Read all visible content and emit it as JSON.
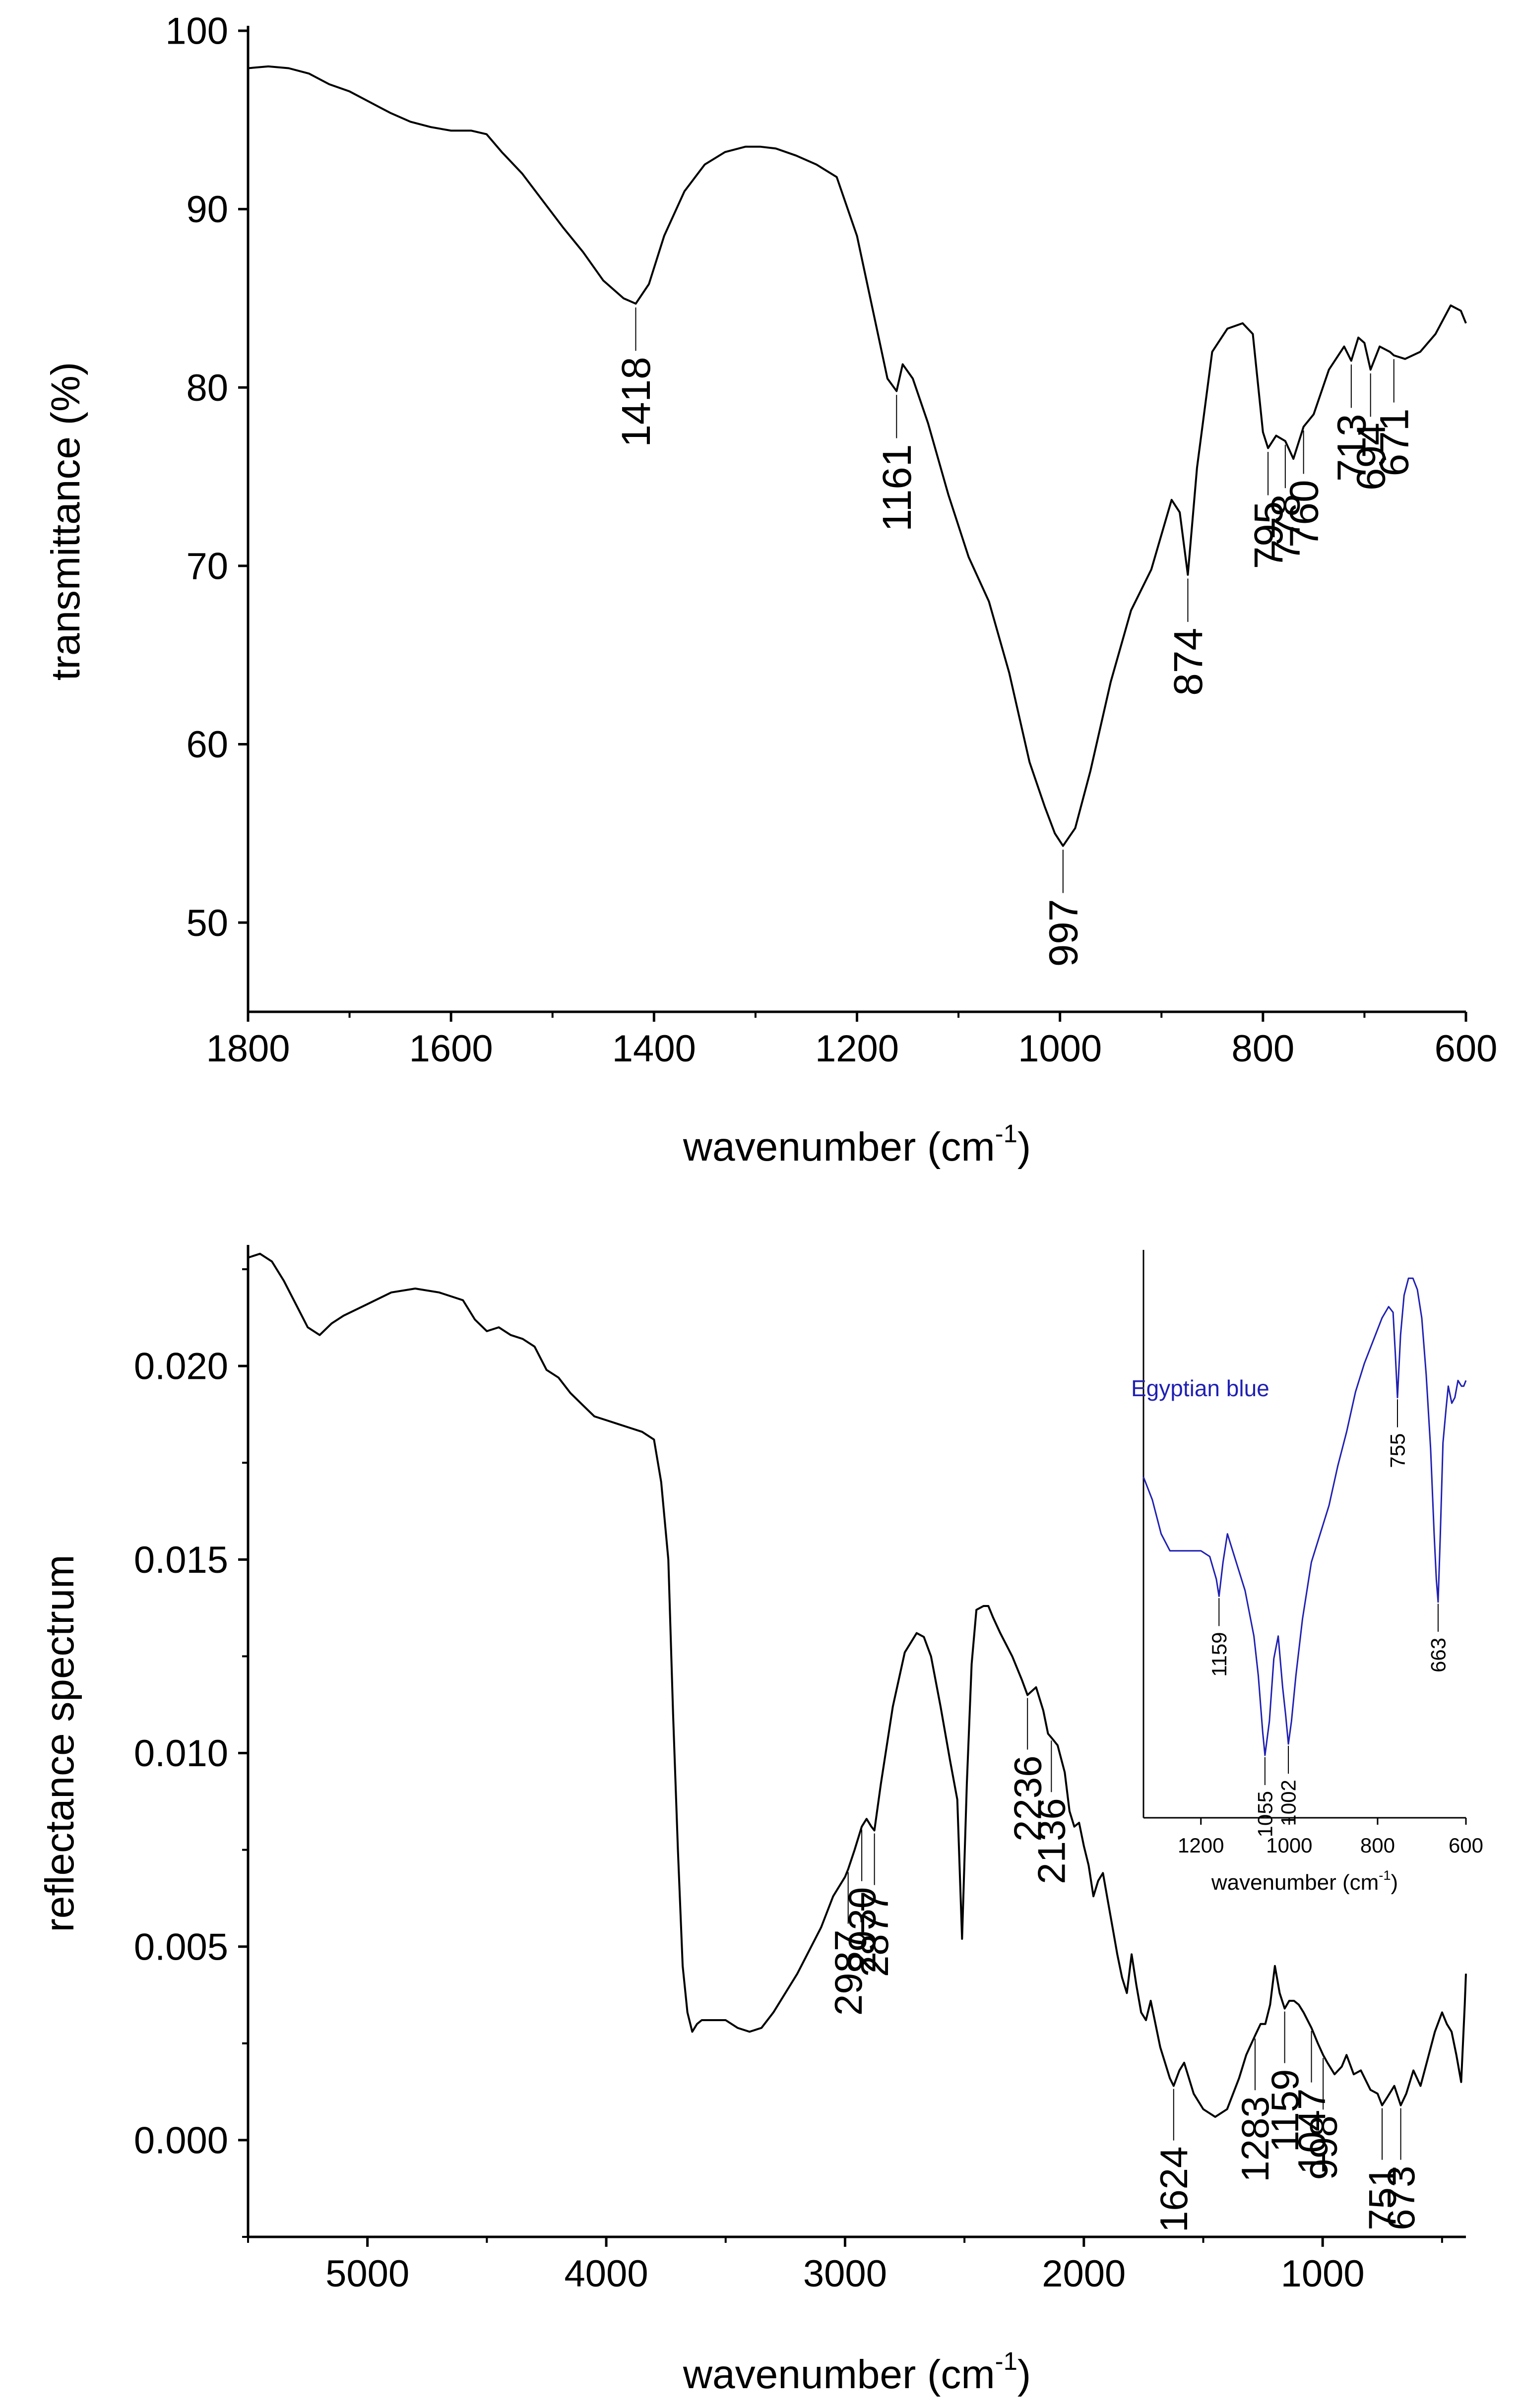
{
  "chart_data": [
    {
      "id": "top",
      "type": "line",
      "xlabel": "wavenumber (cm",
      "xlabel_sup": "-1",
      "xlabel_end": ")",
      "ylabel": "transmittance (%)",
      "xlim": [
        1800,
        600
      ],
      "ylim": [
        45,
        100
      ],
      "xticks": [
        1800,
        1600,
        1400,
        1200,
        1000,
        800,
        600
      ],
      "yticks": [
        50,
        60,
        70,
        80,
        90,
        100
      ],
      "series": [
        {
          "name": "transmittance",
          "color": "#000000",
          "x": [
            1800,
            1780,
            1760,
            1740,
            1720,
            1700,
            1680,
            1660,
            1640,
            1620,
            1600,
            1580,
            1565,
            1550,
            1530,
            1510,
            1490,
            1470,
            1450,
            1430,
            1418,
            1405,
            1390,
            1370,
            1350,
            1330,
            1310,
            1295,
            1280,
            1260,
            1240,
            1220,
            1200,
            1185,
            1170,
            1161,
            1155,
            1145,
            1130,
            1110,
            1090,
            1070,
            1050,
            1030,
            1015,
            1005,
            997,
            985,
            970,
            950,
            930,
            910,
            890,
            882,
            874,
            865,
            850,
            835,
            820,
            810,
            800,
            795,
            787,
            778,
            770,
            760,
            750,
            735,
            720,
            713,
            706,
            700,
            694,
            685,
            675,
            671,
            660,
            645,
            630,
            615,
            605,
            600
          ],
          "y": [
            97.9,
            98.0,
            97.9,
            97.6,
            97.0,
            96.6,
            96.0,
            95.4,
            94.9,
            94.6,
            94.4,
            94.4,
            94.2,
            93.2,
            92.0,
            90.5,
            89.0,
            87.6,
            86.0,
            85.0,
            84.7,
            85.8,
            88.5,
            91.0,
            92.5,
            93.2,
            93.5,
            93.5,
            93.4,
            93.0,
            92.5,
            91.8,
            88.5,
            84.5,
            80.5,
            79.8,
            81.3,
            80.5,
            78.0,
            74.0,
            70.5,
            68.0,
            64.0,
            59.0,
            56.5,
            55.0,
            54.3,
            55.3,
            58.5,
            63.5,
            67.5,
            69.8,
            73.7,
            73.0,
            69.5,
            75.5,
            82.0,
            83.3,
            83.6,
            83.0,
            77.5,
            76.6,
            77.3,
            77.0,
            76.0,
            77.8,
            78.5,
            81.0,
            82.3,
            81.5,
            82.8,
            82.5,
            81.0,
            82.3,
            82.0,
            81.8,
            81.6,
            82.0,
            83.0,
            84.6,
            84.3,
            83.6
          ]
        }
      ],
      "annotations": [
        {
          "label": "1418",
          "x": 1418
        },
        {
          "label": "1161",
          "x": 1161
        },
        {
          "label": "997",
          "x": 997
        },
        {
          "label": "874",
          "x": 874
        },
        {
          "label": "795",
          "x": 795
        },
        {
          "label": "778",
          "x": 778
        },
        {
          "label": "760",
          "x": 760
        },
        {
          "label": "713",
          "x": 713
        },
        {
          "label": "694",
          "x": 694
        },
        {
          "label": "671",
          "x": 671
        }
      ]
    },
    {
      "id": "bottom",
      "type": "line",
      "xlabel": "wavenumber (cm",
      "xlabel_sup": "-1",
      "xlabel_end": ")",
      "ylabel": "reflectance spectrum",
      "xlim": [
        5500,
        400
      ],
      "ylim": [
        -0.0025,
        0.023
      ],
      "xticks": [
        5000,
        4000,
        3000,
        2000,
        1000
      ],
      "yticks": [
        0.0,
        0.005,
        0.01,
        0.015,
        0.02
      ],
      "ytick_labels": [
        "0.000",
        "0.005",
        "0.010",
        "0.015",
        "0.020"
      ],
      "series": [
        {
          "name": "reflectance",
          "color": "#000000",
          "x": [
            5500,
            5450,
            5400,
            5350,
            5300,
            5250,
            5200,
            5150,
            5100,
            5000,
            4900,
            4800,
            4700,
            4600,
            4550,
            4500,
            4450,
            4400,
            4350,
            4300,
            4250,
            4200,
            4150,
            4100,
            4050,
            4000,
            3950,
            3900,
            3850,
            3800,
            3770,
            3740,
            3720,
            3700,
            3680,
            3660,
            3640,
            3620,
            3600,
            3560,
            3500,
            3450,
            3400,
            3350,
            3300,
            3200,
            3100,
            3050,
            3000,
            2987,
            2960,
            2930,
            2910,
            2890,
            2877,
            2850,
            2800,
            2750,
            2700,
            2670,
            2640,
            2600,
            2560,
            2530,
            2510,
            2490,
            2470,
            2450,
            2420,
            2400,
            2380,
            2350,
            2300,
            2260,
            2236,
            2200,
            2170,
            2150,
            2136,
            2110,
            2080,
            2060,
            2040,
            2020,
            2000,
            1980,
            1960,
            1940,
            1920,
            1900,
            1880,
            1860,
            1840,
            1820,
            1800,
            1780,
            1760,
            1740,
            1720,
            1700,
            1680,
            1660,
            1640,
            1624,
            1600,
            1580,
            1560,
            1540,
            1500,
            1450,
            1400,
            1350,
            1320,
            1283,
            1260,
            1240,
            1220,
            1200,
            1180,
            1159,
            1140,
            1120,
            1100,
            1080,
            1047,
            1020,
            998,
            980,
            950,
            920,
            900,
            870,
            840,
            800,
            770,
            751,
            730,
            700,
            673,
            650,
            620,
            590,
            560,
            530,
            500,
            480,
            460,
            440,
            420,
            405,
            400
          ],
          "y": [
            0.0228,
            0.0229,
            0.0227,
            0.0222,
            0.0216,
            0.021,
            0.0208,
            0.0211,
            0.0213,
            0.0216,
            0.0219,
            0.022,
            0.0219,
            0.0217,
            0.0212,
            0.0209,
            0.021,
            0.0208,
            0.0207,
            0.0205,
            0.0199,
            0.0197,
            0.0193,
            0.019,
            0.0187,
            0.0186,
            0.0185,
            0.0184,
            0.0183,
            0.0181,
            0.017,
            0.015,
            0.011,
            0.0075,
            0.0045,
            0.0033,
            0.0028,
            0.003,
            0.0031,
            0.0031,
            0.0031,
            0.0029,
            0.0028,
            0.0029,
            0.0033,
            0.0043,
            0.0055,
            0.0063,
            0.0068,
            0.007,
            0.0075,
            0.0081,
            0.0083,
            0.0081,
            0.008,
            0.0092,
            0.0112,
            0.0126,
            0.0131,
            0.013,
            0.0125,
            0.0112,
            0.0098,
            0.0088,
            0.0052,
            0.0092,
            0.0123,
            0.0137,
            0.0138,
            0.0138,
            0.0135,
            0.0131,
            0.0125,
            0.0119,
            0.0115,
            0.0117,
            0.0111,
            0.0105,
            0.0104,
            0.0102,
            0.0095,
            0.0085,
            0.0081,
            0.0082,
            0.0076,
            0.0071,
            0.0063,
            0.0067,
            0.0069,
            0.0062,
            0.0055,
            0.0048,
            0.0042,
            0.0038,
            0.0048,
            0.004,
            0.0033,
            0.0031,
            0.0036,
            0.003,
            0.0024,
            0.002,
            0.0016,
            0.0014,
            0.0018,
            0.002,
            0.0016,
            0.0012,
            0.0008,
            0.0006,
            0.0008,
            0.0016,
            0.0022,
            0.0027,
            0.003,
            0.003,
            0.0035,
            0.0045,
            0.0038,
            0.0034,
            0.0036,
            0.0036,
            0.0035,
            0.0033,
            0.0029,
            0.0025,
            0.0022,
            0.002,
            0.0017,
            0.0019,
            0.0022,
            0.0017,
            0.0018,
            0.0013,
            0.0012,
            0.0009,
            0.0011,
            0.0014,
            0.0009,
            0.0012,
            0.0018,
            0.0014,
            0.0021,
            0.0028,
            0.0033,
            0.003,
            0.0028,
            0.0022,
            0.0015,
            0.0035,
            0.0043
          ]
        }
      ],
      "annotations": [
        {
          "label": "2987",
          "x": 2987
        },
        {
          "label": "2930",
          "x": 2930
        },
        {
          "label": "2877",
          "x": 2877
        },
        {
          "label": "2236",
          "x": 2236
        },
        {
          "label": "2136",
          "x": 2136
        },
        {
          "label": "1624",
          "x": 1624
        },
        {
          "label": "1283",
          "x": 1283
        },
        {
          "label": "1159",
          "x": 1159
        },
        {
          "label": "1047",
          "x": 1047
        },
        {
          "label": "998",
          "x": 998
        },
        {
          "label": "751",
          "x": 751
        },
        {
          "label": "673",
          "x": 673
        }
      ]
    },
    {
      "id": "inset",
      "type": "line",
      "title": "Egyptian blue",
      "xlabel": "wavenumber (cm",
      "xlabel_sup": "-1",
      "xlabel_end": ")",
      "ylabel": "",
      "xlim": [
        1330,
        600
      ],
      "ylim": [
        0,
        1
      ],
      "xticks": [
        1200,
        1000,
        800,
        600
      ],
      "yticks": [],
      "series": [
        {
          "name": "Egyptian blue",
          "color": "#1f1fb4",
          "x": [
            1330,
            1310,
            1290,
            1270,
            1250,
            1220,
            1200,
            1180,
            1165,
            1159,
            1150,
            1140,
            1120,
            1100,
            1080,
            1070,
            1060,
            1055,
            1045,
            1035,
            1025,
            1015,
            1008,
            1002,
            995,
            985,
            970,
            950,
            930,
            910,
            890,
            870,
            850,
            830,
            810,
            790,
            775,
            765,
            760,
            755,
            748,
            740,
            730,
            720,
            710,
            700,
            690,
            680,
            672,
            667,
            663,
            658,
            652,
            645,
            640,
            632,
            625,
            618,
            610,
            605,
            600
          ],
          "y": [
            0.6,
            0.56,
            0.5,
            0.47,
            0.47,
            0.47,
            0.47,
            0.46,
            0.42,
            0.39,
            0.45,
            0.5,
            0.45,
            0.4,
            0.32,
            0.25,
            0.15,
            0.11,
            0.17,
            0.28,
            0.32,
            0.23,
            0.18,
            0.13,
            0.17,
            0.25,
            0.35,
            0.45,
            0.5,
            0.55,
            0.62,
            0.68,
            0.75,
            0.8,
            0.84,
            0.88,
            0.9,
            0.89,
            0.82,
            0.74,
            0.85,
            0.92,
            0.95,
            0.95,
            0.93,
            0.88,
            0.78,
            0.65,
            0.5,
            0.42,
            0.38,
            0.5,
            0.66,
            0.72,
            0.76,
            0.73,
            0.74,
            0.77,
            0.76,
            0.76,
            0.77
          ]
        }
      ],
      "annotations": [
        {
          "label": "1159",
          "x": 1159
        },
        {
          "label": "1055",
          "x": 1055
        },
        {
          "label": "1002",
          "x": 1002
        },
        {
          "label": "755",
          "x": 755
        },
        {
          "label": "663",
          "x": 663
        }
      ]
    }
  ]
}
